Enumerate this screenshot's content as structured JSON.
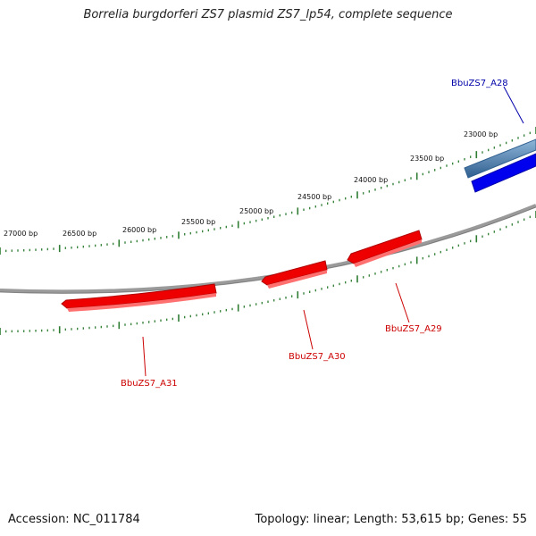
{
  "title": "Borrelia burgdorferi ZS7 plasmid ZS7_lp54, complete sequence",
  "footer": {
    "accession": "Accession: NC_011784",
    "summary": "Topology: linear; Length: 53,615 bp; Genes: 55"
  },
  "colors": {
    "backbone": "#888888",
    "tick": "#2e7d32",
    "forward_gene": "#0000ee",
    "forward_gene_alt": "#4a7fb0",
    "reverse_gene": "#ee0000",
    "forward_label": "#0000aa",
    "reverse_label": "#cc0000"
  },
  "ticks": {
    "labels": [
      "27000 bp",
      "26500 bp",
      "26000 bp",
      "25500 bp",
      "25000 bp",
      "24500 bp",
      "24000 bp",
      "23500 bp",
      "23000 bp"
    ]
  },
  "genes": [
    {
      "name": "BbuZS7_A28",
      "strand": "forward"
    },
    {
      "name": "BbuZS7_A29",
      "strand": "reverse"
    },
    {
      "name": "BbuZS7_A30",
      "strand": "reverse"
    },
    {
      "name": "BbuZS7_A31",
      "strand": "reverse"
    }
  ]
}
